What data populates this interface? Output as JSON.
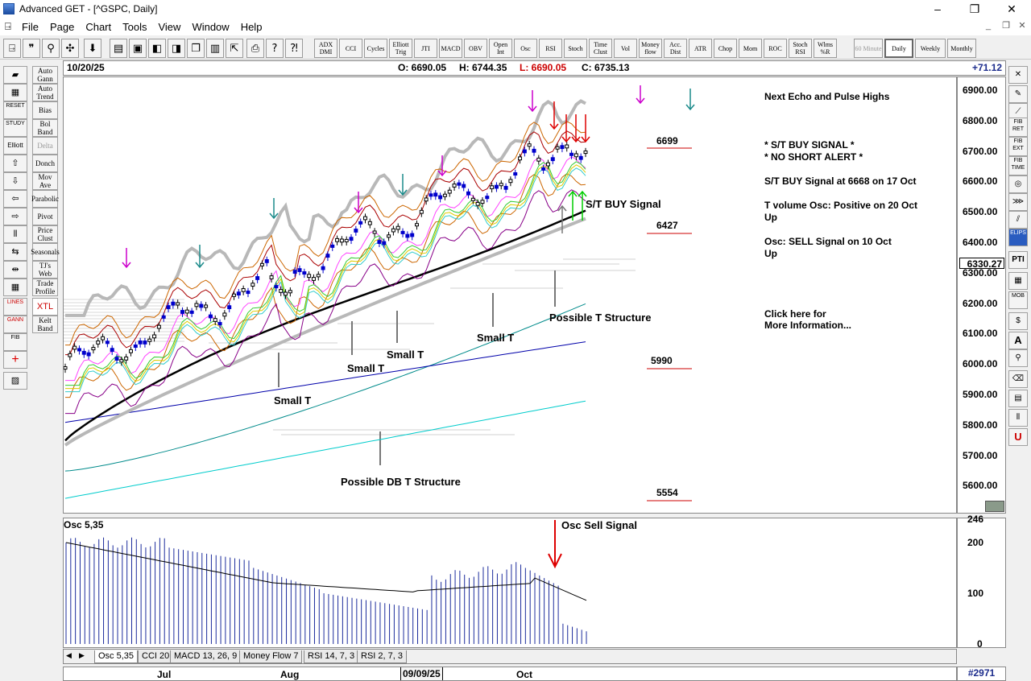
{
  "window": {
    "title": "Advanced GET - [^GSPC, Daily]",
    "minimize": "–",
    "maximize": "❐",
    "close": "✕"
  },
  "menu": {
    "items": [
      "File",
      "Page",
      "Chart",
      "Tools",
      "View",
      "Window",
      "Help"
    ],
    "mdi": [
      "_",
      "❐",
      "✕"
    ]
  },
  "toolbar": {
    "indicators": [
      {
        "id": "adx",
        "label": "ADX DMI"
      },
      {
        "id": "cci",
        "label": "CCI"
      },
      {
        "id": "cycles",
        "label": "Cycles"
      },
      {
        "id": "elliott-trig",
        "label": "Elliott Trig"
      },
      {
        "id": "jti",
        "label": "JTI"
      },
      {
        "id": "macd",
        "label": "MACD"
      },
      {
        "id": "obv",
        "label": "OBV"
      },
      {
        "id": "open-int",
        "label": "Open Int"
      },
      {
        "id": "osc",
        "label": "Osc"
      },
      {
        "id": "rsi",
        "label": "RSI"
      },
      {
        "id": "stoch",
        "label": "Stoch"
      },
      {
        "id": "time-clust",
        "label": "Time Clust"
      },
      {
        "id": "vol",
        "label": "Vol"
      },
      {
        "id": "money-flow",
        "label": "Money flow"
      },
      {
        "id": "acc-dist",
        "label": "Acc. Dist"
      },
      {
        "id": "atr",
        "label": "ATR"
      },
      {
        "id": "chop",
        "label": "Chop"
      },
      {
        "id": "mom",
        "label": "Mom"
      },
      {
        "id": "roc",
        "label": "ROC"
      },
      {
        "id": "stoch-rsi",
        "label": "Stoch RSI"
      },
      {
        "id": "wlms",
        "label": "Wlms %R"
      }
    ],
    "periods": [
      {
        "id": "60-minute",
        "label": "60 Minute"
      },
      {
        "id": "daily",
        "label": "Daily"
      },
      {
        "id": "weekly",
        "label": "Weekly"
      },
      {
        "id": "monthly",
        "label": "Monthly"
      }
    ],
    "selected_period": "Daily"
  },
  "left_tools": [
    "Auto Gann",
    "Auto Trend",
    "Bias",
    "Bol Band",
    "Delta",
    "Donch",
    "Mov Ave",
    "Parabolic",
    "Pivot",
    "Price Clust",
    "Seasonals",
    "TJ's Web",
    "Trade Profile",
    "XTL",
    "Kelt Band"
  ],
  "left_icons": [
    "RESET",
    "STUDY",
    "Elliott",
    "LINES",
    "GANN",
    "FIB"
  ],
  "right_tools": [
    "FIB RET",
    "FIB EXT",
    "FIB TIME",
    "ELIPS",
    "PTI",
    "MOB"
  ],
  "info": {
    "date": "10/20/25",
    "open": "O: 6690.05",
    "high": "H: 6744.35",
    "low": "L: 6690.05",
    "close": "C: 6735.13",
    "change": "+71.12"
  },
  "price_axis": {
    "ticks": [
      "6900.00",
      "6800.00",
      "6700.00",
      "6600.00",
      "6500.00",
      "6400.00",
      "6300.00",
      "6200.00",
      "6100.00",
      "6000.00",
      "5900.00",
      "5800.00",
      "5700.00",
      "5600.00"
    ],
    "marker": "6330.27"
  },
  "notes": {
    "echo_pulse": "Next Echo and Pulse Highs",
    "signal1": "* S/T BUY SIGNAL *",
    "signal2": "* NO SHORT ALERT *",
    "buy_at": "S/T BUY Signal at 6668 on 17 Oct",
    "tvol": "T volume Osc: Positive on 20 Oct",
    "tvol_dir": "Up",
    "osc_sell": "Osc: SELL Signal on 10 Oct",
    "osc_dir": "Up",
    "click1": "Click here for",
    "click2": "More Information..."
  },
  "levels": {
    "l6699": "6699",
    "l6427": "6427",
    "l5990": "5990",
    "l5554": "5554"
  },
  "annotations": {
    "st_buy": "S/T BUY Signal",
    "small_t": "Small T",
    "possible_t": "Possible T Structure",
    "possible_db": "Possible DB T Structure",
    "osc_label": "Osc 5,35",
    "osc_sell": "Osc Sell Signal"
  },
  "osc_axis": {
    "ticks": [
      "200",
      "100",
      "0"
    ],
    "top": "246"
  },
  "tabs": [
    "Osc 5,35",
    "CCI 20",
    "MACD 13, 26, 9",
    "Money Flow 7",
    "RSI 14, 7, 3",
    "RSI 2, 7, 3"
  ],
  "dates": {
    "jul": "Jul",
    "aug": "Aug",
    "cursor": "09/09/25",
    "oct": "Oct"
  },
  "bar_count": "#2971",
  "colors": {
    "candle_up": "#0000cc",
    "candle_down": "#000000",
    "ma_black": "#000000",
    "buy_arrow": "#00cc00",
    "sell_arrow": "#dd0000",
    "magenta": "#cc00cc",
    "teal": "#1a8a8a",
    "level_line": "#cc0000"
  }
}
